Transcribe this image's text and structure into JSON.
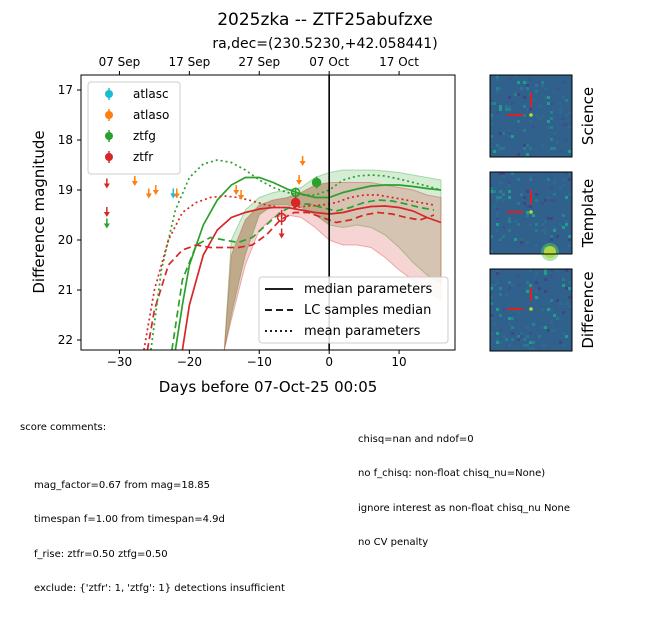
{
  "title": "2025zka -- ZTF25abufzxe",
  "subtitle": "ra,dec=(230.5230,+42.058441)",
  "chart_data": {
    "type": "scatter",
    "xlabel": "Days before 07-Oct-25 00:05",
    "ylabel": "Difference magnitude",
    "xlim": [
      -35.5,
      18
    ],
    "ylim": [
      22.2,
      16.7
    ],
    "y_inverted": true,
    "x_ticks": [
      -30,
      -20,
      -10,
      0,
      10
    ],
    "y_ticks": [
      17,
      18,
      19,
      20,
      21,
      22
    ],
    "top_axis_ticks": [
      {
        "x": -30,
        "label": "07 Sep"
      },
      {
        "x": -20,
        "label": "17 Sep"
      },
      {
        "x": -10,
        "label": "27 Sep"
      },
      {
        "x": 0,
        "label": "07 Oct"
      },
      {
        "x": 10,
        "label": "17 Oct"
      }
    ],
    "vertical_line_x": 0,
    "legend_filters": [
      {
        "name": "atlasc",
        "color": "#17becf"
      },
      {
        "name": "atlaso",
        "color": "#ff7f0e"
      },
      {
        "name": "ztfg",
        "color": "#2ca02c"
      },
      {
        "name": "ztfr",
        "color": "#d62728"
      }
    ],
    "legend_lines": [
      {
        "name": "median parameters",
        "style": "solid"
      },
      {
        "name": "LC samples median",
        "style": "dashed"
      },
      {
        "name": "mean parameters",
        "style": "dotted"
      }
    ],
    "upper_limits": [
      {
        "filter": "atlasc",
        "x": -22.3,
        "y": 19.05
      },
      {
        "filter": "atlaso",
        "x": -27.8,
        "y": 18.8
      },
      {
        "filter": "atlaso",
        "x": -25.8,
        "y": 19.05
      },
      {
        "filter": "atlaso",
        "x": -24.8,
        "y": 18.98
      },
      {
        "filter": "atlaso",
        "x": -21.8,
        "y": 19.05
      },
      {
        "filter": "atlaso",
        "x": -13.3,
        "y": 18.98
      },
      {
        "filter": "atlaso",
        "x": -12.6,
        "y": 19.08
      },
      {
        "filter": "atlaso",
        "x": -4.3,
        "y": 18.78
      },
      {
        "filter": "atlaso",
        "x": -3.8,
        "y": 18.4
      },
      {
        "filter": "ztfg",
        "x": -31.8,
        "y": 19.65
      },
      {
        "filter": "ztfr",
        "x": -31.8,
        "y": 18.85
      },
      {
        "filter": "ztfr",
        "x": -31.8,
        "y": 19.42
      },
      {
        "filter": "ztfr",
        "x": -6.8,
        "y": 19.85
      }
    ],
    "detections": [
      {
        "filter": "ztfg",
        "x": -1.8,
        "y": 18.85,
        "err": 0.12,
        "open": false
      },
      {
        "filter": "ztfg",
        "x": -4.8,
        "y": 19.05,
        "err": 0.1,
        "open": true
      },
      {
        "filter": "ztfr",
        "x": -4.8,
        "y": 19.25,
        "err": 0.12,
        "open": false
      },
      {
        "filter": "ztfr",
        "x": -6.8,
        "y": 19.55,
        "err": 0.15,
        "open": true
      }
    ],
    "model_curves": [
      {
        "filter": "ztfg",
        "style": "solid",
        "points": [
          [
            -22,
            22.2
          ],
          [
            -21,
            21.3
          ],
          [
            -20,
            20.5
          ],
          [
            -18,
            19.7
          ],
          [
            -16,
            19.2
          ],
          [
            -14,
            18.9
          ],
          [
            -12,
            18.75
          ],
          [
            -10,
            18.75
          ],
          [
            -8,
            18.85
          ],
          [
            -6,
            18.98
          ],
          [
            -4,
            19.08
          ],
          [
            -2,
            19.15
          ],
          [
            0,
            19.15
          ],
          [
            2,
            19.05
          ],
          [
            4,
            18.98
          ],
          [
            6,
            18.92
          ],
          [
            8,
            18.9
          ],
          [
            10,
            18.9
          ],
          [
            12,
            18.93
          ],
          [
            14,
            18.97
          ],
          [
            16,
            19.0
          ]
        ]
      },
      {
        "filter": "ztfr",
        "style": "solid",
        "points": [
          [
            -21,
            22.2
          ],
          [
            -20,
            21.3
          ],
          [
            -18,
            20.3
          ],
          [
            -16,
            19.8
          ],
          [
            -14,
            19.55
          ],
          [
            -12,
            19.45
          ],
          [
            -10,
            19.38
          ],
          [
            -8,
            19.35
          ],
          [
            -6,
            19.35
          ],
          [
            -4,
            19.4
          ],
          [
            -2,
            19.45
          ],
          [
            0,
            19.48
          ],
          [
            2,
            19.45
          ],
          [
            4,
            19.38
          ],
          [
            6,
            19.33
          ],
          [
            8,
            19.32
          ],
          [
            10,
            19.35
          ],
          [
            12,
            19.42
          ],
          [
            14,
            19.55
          ],
          [
            16,
            19.65
          ]
        ]
      },
      {
        "filter": "ztfg",
        "style": "dashed",
        "points": [
          [
            -22.5,
            22.2
          ],
          [
            -21,
            20.8
          ],
          [
            -19,
            20.1
          ],
          [
            -17,
            19.95
          ],
          [
            -15,
            20.0
          ],
          [
            -13,
            20.05
          ],
          [
            -11,
            19.95
          ],
          [
            -9,
            19.7
          ],
          [
            -7,
            19.45
          ],
          [
            -5,
            19.3
          ],
          [
            -3,
            19.28
          ],
          [
            -1,
            19.35
          ],
          [
            1,
            19.42
          ],
          [
            3,
            19.35
          ],
          [
            5,
            19.25
          ],
          [
            7,
            19.2
          ],
          [
            9,
            19.22
          ],
          [
            11,
            19.28
          ],
          [
            13,
            19.35
          ],
          [
            15,
            19.4
          ]
        ]
      },
      {
        "filter": "ztfr",
        "style": "dashed",
        "points": [
          [
            -26,
            22.2
          ],
          [
            -25,
            21.4
          ],
          [
            -23,
            20.5
          ],
          [
            -21,
            20.2
          ],
          [
            -19,
            20.1
          ],
          [
            -17,
            20.15
          ],
          [
            -15,
            20.15
          ],
          [
            -13,
            20.15
          ],
          [
            -11,
            20.1
          ],
          [
            -9,
            19.9
          ],
          [
            -7,
            19.6
          ],
          [
            -5,
            19.45
          ],
          [
            -3,
            19.45
          ],
          [
            -1,
            19.55
          ],
          [
            1,
            19.65
          ],
          [
            3,
            19.6
          ],
          [
            5,
            19.5
          ],
          [
            7,
            19.45
          ],
          [
            9,
            19.48
          ],
          [
            11,
            19.55
          ],
          [
            13,
            19.6
          ],
          [
            15,
            19.5
          ]
        ]
      },
      {
        "filter": "ztfg",
        "style": "dotted",
        "points": [
          [
            -25.5,
            22.2
          ],
          [
            -24,
            20.6
          ],
          [
            -22,
            19.4
          ],
          [
            -20,
            18.75
          ],
          [
            -18,
            18.48
          ],
          [
            -16,
            18.4
          ],
          [
            -14,
            18.45
          ],
          [
            -12,
            18.6
          ],
          [
            -10,
            18.8
          ],
          [
            -8,
            18.95
          ],
          [
            -6,
            19.05
          ],
          [
            -4,
            19.1
          ],
          [
            -2,
            19.1
          ],
          [
            0,
            19.0
          ],
          [
            2,
            18.8
          ],
          [
            4,
            18.72
          ],
          [
            6,
            18.7
          ],
          [
            8,
            18.72
          ],
          [
            10,
            18.78
          ],
          [
            12,
            18.85
          ],
          [
            14,
            18.92
          ],
          [
            16,
            19.0
          ]
        ]
      },
      {
        "filter": "ztfr",
        "style": "dotted",
        "points": [
          [
            -26.5,
            22.2
          ],
          [
            -25,
            21.0
          ],
          [
            -23,
            20.0
          ],
          [
            -21,
            19.45
          ],
          [
            -19,
            19.25
          ],
          [
            -17,
            19.15
          ],
          [
            -15,
            19.12
          ],
          [
            -13,
            19.15
          ],
          [
            -11,
            19.22
          ],
          [
            -9,
            19.3
          ],
          [
            -7,
            19.35
          ],
          [
            -5,
            19.35
          ],
          [
            -3,
            19.32
          ],
          [
            -1,
            19.3
          ],
          [
            1,
            19.25
          ],
          [
            3,
            19.15
          ],
          [
            5,
            19.1
          ],
          [
            7,
            19.1
          ],
          [
            9,
            19.15
          ],
          [
            11,
            19.2
          ],
          [
            13,
            19.25
          ],
          [
            15,
            19.3
          ]
        ]
      }
    ],
    "uncertainty_bands": [
      {
        "filter": "ztfg",
        "upper": [
          [
            -15,
            22.2
          ],
          [
            -14,
            20.0
          ],
          [
            -12,
            19.4
          ],
          [
            -10,
            19.15
          ],
          [
            -8,
            19.05
          ],
          [
            -6,
            19.0
          ],
          [
            -4,
            18.95
          ],
          [
            -2,
            18.75
          ],
          [
            0,
            18.65
          ],
          [
            2,
            18.6
          ],
          [
            4,
            18.6
          ],
          [
            6,
            18.6
          ],
          [
            8,
            18.62
          ],
          [
            10,
            18.65
          ],
          [
            12,
            18.7
          ],
          [
            14,
            18.75
          ],
          [
            16,
            18.8
          ]
        ],
        "lower": [
          [
            16,
            20.85
          ],
          [
            14,
            20.7
          ],
          [
            12,
            20.45
          ],
          [
            10,
            20.15
          ],
          [
            8,
            19.9
          ],
          [
            6,
            19.75
          ],
          [
            4,
            19.7
          ],
          [
            2,
            19.75
          ],
          [
            0,
            19.7
          ],
          [
            -2,
            19.5
          ],
          [
            -4,
            19.35
          ],
          [
            -6,
            19.3
          ],
          [
            -8,
            19.3
          ],
          [
            -10,
            19.5
          ],
          [
            -12,
            20.3
          ],
          [
            -14,
            21.5
          ],
          [
            -15,
            22.2
          ]
        ]
      },
      {
        "filter": "ztfr",
        "upper": [
          [
            -15,
            22.2
          ],
          [
            -14,
            20.3
          ],
          [
            -12,
            19.6
          ],
          [
            -10,
            19.3
          ],
          [
            -8,
            19.2
          ],
          [
            -6,
            19.15
          ],
          [
            -4,
            19.05
          ],
          [
            -2,
            18.9
          ],
          [
            0,
            18.85
          ],
          [
            2,
            18.85
          ],
          [
            4,
            18.85
          ],
          [
            6,
            18.85
          ],
          [
            8,
            18.9
          ],
          [
            10,
            18.95
          ],
          [
            12,
            19.0
          ],
          [
            14,
            19.1
          ],
          [
            16,
            19.15
          ]
        ],
        "lower": [
          [
            16,
            21.2
          ],
          [
            14,
            21.0
          ],
          [
            12,
            20.8
          ],
          [
            10,
            20.6
          ],
          [
            8,
            20.35
          ],
          [
            6,
            20.15
          ],
          [
            4,
            20.1
          ],
          [
            2,
            20.1
          ],
          [
            0,
            20.0
          ],
          [
            -2,
            19.75
          ],
          [
            -4,
            19.55
          ],
          [
            -6,
            19.5
          ],
          [
            -8,
            19.55
          ],
          [
            -10,
            19.8
          ],
          [
            -12,
            20.5
          ],
          [
            -14,
            21.6
          ],
          [
            -15,
            22.2
          ]
        ]
      }
    ]
  },
  "cutouts": [
    {
      "label": "Science",
      "bright_spot": false
    },
    {
      "label": "Template",
      "bright_spot": true
    },
    {
      "label": "Difference",
      "bright_spot": false
    }
  ],
  "comments": {
    "heading": "score comments:",
    "left": [
      "mag_factor=0.67 from mag=18.85",
      "timespan f=1.00 from timespan=4.9d",
      "f_rise: ztfr=0.50 ztfg=0.50",
      "exclude: {'ztfr': 1, 'ztfg': 1} detections insufficient"
    ],
    "right": [
      "chisq=nan and ndof=0",
      "no f_chisq: non-float chisq_nu=None)",
      "ignore interest as non-float chisq_nu None",
      "no CV penalty"
    ]
  },
  "colors": {
    "atlasc": "#17becf",
    "atlaso": "#ff7f0e",
    "ztfg": "#2ca02c",
    "ztfr": "#d62728",
    "band_fill": "#8a6a2a"
  }
}
